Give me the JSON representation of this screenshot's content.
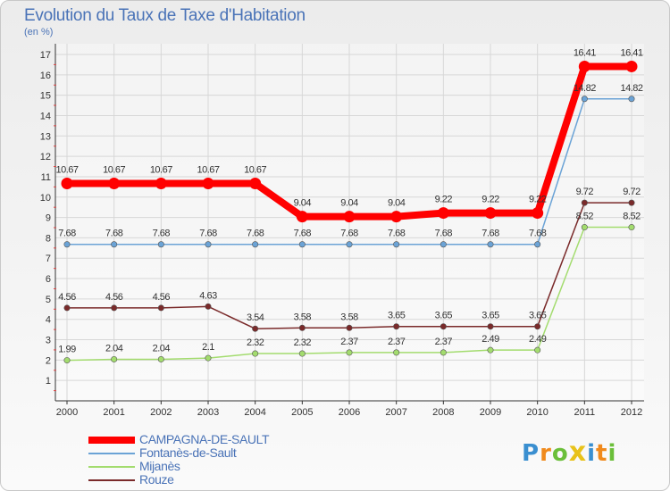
{
  "chart_data": {
    "type": "line",
    "title": "Evolution du Taux de Taxe d'Habitation",
    "subtitle": "(en %)",
    "categories": [
      "2000",
      "2001",
      "2002",
      "2003",
      "2004",
      "2005",
      "2006",
      "2007",
      "2008",
      "2009",
      "2010",
      "2011",
      "2012"
    ],
    "ylim": [
      0,
      17
    ],
    "yticks": [
      1,
      2,
      3,
      4,
      5,
      6,
      7,
      8,
      9,
      10,
      11,
      12,
      13,
      14,
      15,
      16,
      17
    ],
    "grid": true,
    "legend_position": "bottom-left",
    "series": [
      {
        "name": "CAMPAGNA-DE-SAULT",
        "color": "#ff0000",
        "bold": true,
        "values": [
          10.67,
          10.67,
          10.67,
          10.67,
          10.67,
          9.04,
          9.04,
          9.04,
          9.22,
          9.22,
          9.22,
          16.41,
          16.41
        ],
        "labels": [
          "10.67",
          "10.67",
          "10.67",
          "10.67",
          "10.67",
          "9.04",
          "9.04",
          "9.04",
          "9.22",
          "9.22",
          "9.22",
          "16.41",
          "16.41"
        ]
      },
      {
        "name": "Fontanès-de-Sault",
        "color": "#6ba3d6",
        "values": [
          7.68,
          7.68,
          7.68,
          7.68,
          7.68,
          7.68,
          7.68,
          7.68,
          7.68,
          7.68,
          7.68,
          14.82,
          14.82
        ],
        "labels": [
          "7.68",
          "7.68",
          "7.68",
          "7.68",
          "7.68",
          "7.68",
          "7.68",
          "7.68",
          "7.68",
          "7.68",
          "7.68",
          "14.82",
          "14.82"
        ]
      },
      {
        "name": "Mijanès",
        "color": "#a3dc6e",
        "values": [
          1.99,
          2.04,
          2.04,
          2.1,
          2.32,
          2.32,
          2.37,
          2.37,
          2.37,
          2.49,
          2.49,
          8.52,
          8.52
        ],
        "labels": [
          "1.99",
          "2.04",
          "2.04",
          "2.1",
          "2.32",
          "2.32",
          "2.37",
          "2.37",
          "2.37",
          "2.49",
          "2.49",
          "8.52",
          "8.52"
        ]
      },
      {
        "name": "Rouze",
        "color": "#7a2a2a",
        "values": [
          4.56,
          4.56,
          4.56,
          4.63,
          3.54,
          3.58,
          3.58,
          3.65,
          3.65,
          3.65,
          3.65,
          9.72,
          9.72
        ],
        "labels": [
          "4.56",
          "4.56",
          "4.56",
          "4.63",
          "3.54",
          "3.58",
          "3.58",
          "3.65",
          "3.65",
          "3.65",
          "3.65",
          "9.72",
          "9.72"
        ]
      }
    ]
  },
  "logo": {
    "letters": [
      "P",
      "r",
      "o",
      "x",
      "i",
      "t",
      "i"
    ],
    "colors": [
      "#3a8fd0",
      "#f08a1c",
      "#6bbf3a",
      "#e8c21a",
      "#3a8fd0",
      "#f08a1c",
      "#6bbf3a"
    ]
  }
}
